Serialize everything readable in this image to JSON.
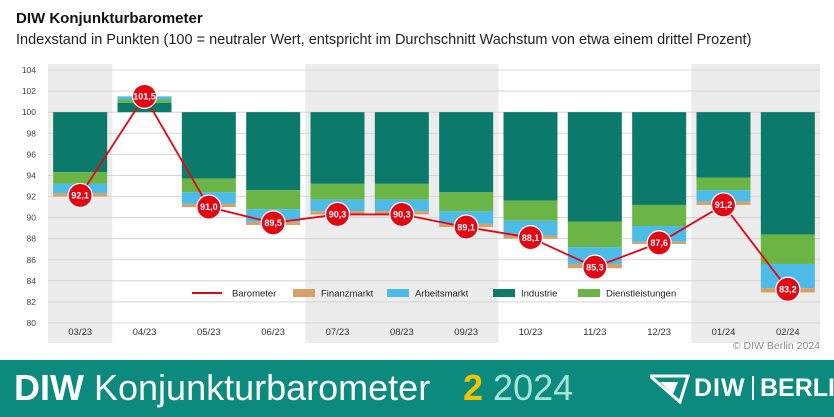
{
  "header": {
    "title": "DIW Konjunkturbarometer",
    "subtitle": "Indexstand in Punkten (100 = neutraler Wert, entspricht im Durchschnitt Wachstum von etwa einem drittel Prozent)"
  },
  "credit": "© DIW Berlin 2024",
  "footer": {
    "brand_bold": "DIW",
    "brand_rest": "Konjunkturbarometer",
    "issue_number": "2",
    "issue_year": "2024",
    "logo_diw": "DIW",
    "logo_berlin": "BERLIN"
  },
  "colors": {
    "barometer": "#e30613",
    "finanzmarkt": "#d9a066",
    "arbeitsmarkt": "#4dbbe8",
    "industrie": "#0c7a6b",
    "dienstleistungen": "#6ab545",
    "footer_bg": "#0d8a7e",
    "issue_number": "#f3c300"
  },
  "chart_data": {
    "type": "bar",
    "categories": [
      "03/23",
      "04/23",
      "05/23",
      "06/23",
      "07/23",
      "08/23",
      "09/23",
      "10/23",
      "11/23",
      "12/23",
      "01/24",
      "02/24"
    ],
    "ylim": [
      80,
      104
    ],
    "yticks": [
      80,
      82,
      84,
      86,
      88,
      90,
      92,
      94,
      96,
      98,
      100,
      102,
      104
    ],
    "baseline": 100,
    "stacking": "components stacked downward from 100 (Industrie, Dienstleistungen, Arbeitsmarkt, Finanzmarkt); positive month stacked upward",
    "series": [
      {
        "name": "Industrie",
        "values": [
          -5.7,
          0.9,
          -6.3,
          -7.4,
          -6.8,
          -6.8,
          -7.6,
          -8.4,
          -10.4,
          -8.8,
          -6.2,
          -11.6
        ]
      },
      {
        "name": "Dienstleistungen",
        "values": [
          -1.1,
          0.3,
          -1.3,
          -1.8,
          -1.5,
          -1.5,
          -1.8,
          -1.9,
          -2.4,
          -2.0,
          -1.2,
          -2.8
        ]
      },
      {
        "name": "Arbeitsmarkt",
        "values": [
          -0.9,
          0.3,
          -1.1,
          -1.2,
          -1.1,
          -1.1,
          -1.2,
          -1.4,
          -1.6,
          -1.5,
          -1.1,
          -2.3
        ]
      },
      {
        "name": "Finanzmarkt",
        "values": [
          -0.3,
          0.0,
          -0.3,
          -0.3,
          -0.3,
          -0.3,
          -0.3,
          -0.3,
          -0.4,
          -0.2,
          -0.3,
          -0.4
        ]
      },
      {
        "name": "Barometer",
        "type": "line",
        "values": [
          92.1,
          101.5,
          91.0,
          89.5,
          90.3,
          90.3,
          89.1,
          88.1,
          85.3,
          87.6,
          91.2,
          83.2
        ]
      }
    ],
    "data_labels": [
      "92,1",
      "101,5",
      "91,0",
      "89,5",
      "90,3",
      "90,3",
      "89,1",
      "88,1",
      "85,3",
      "87,6",
      "91,2",
      "83,2"
    ],
    "legend": {
      "placement": "bottom-right inside plot",
      "items": [
        "Barometer",
        "Finanzmarkt",
        "Arbeitsmarkt",
        "Industrie",
        "Dienstleistungen"
      ]
    },
    "grid": true
  }
}
